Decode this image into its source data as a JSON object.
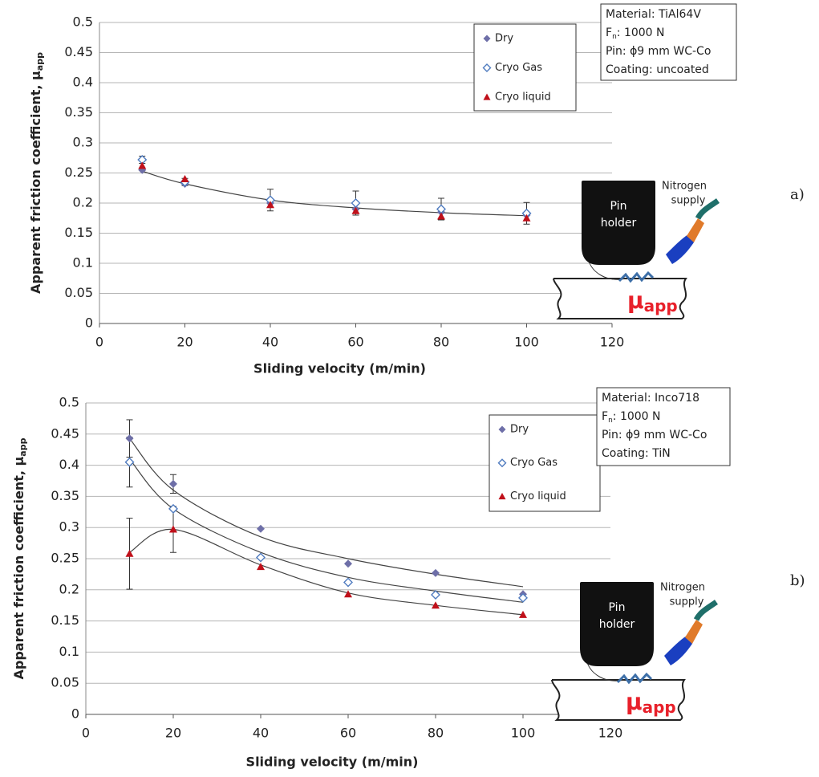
{
  "chart_data": [
    {
      "type": "scatter",
      "panel": "a)",
      "x_label": "Sliding velocity (m/min)",
      "y_label": "Apparent friction coefficient, μ",
      "y_label_sub": "app",
      "x": [
        10,
        20,
        40,
        60,
        80,
        100
      ],
      "xlim": [
        0,
        120
      ],
      "xticks": [
        0,
        20,
        40,
        60,
        80,
        100,
        120
      ],
      "ylim": [
        0,
        0.5
      ],
      "yticks": [
        0,
        0.05,
        0.1,
        0.15,
        0.2,
        0.25,
        0.3,
        0.35,
        0.4,
        0.45,
        0.5
      ],
      "grid": true,
      "legend": "upper right",
      "info": [
        {
          "text": "Material: TiAl64V"
        },
        {
          "text": "F",
          "sub": "n",
          "rest": ": 1000 N"
        },
        {
          "text": "Pin: ϕ9 mm WC-Co"
        },
        {
          "text": "Coating: uncoated"
        }
      ],
      "inset": {
        "pin": [
          "Pin",
          "holder"
        ],
        "gas": [
          "Nitrogen",
          "supply"
        ],
        "mu": "μ",
        "mu_sub": "app"
      },
      "series": [
        {
          "name": "Dry",
          "color": "#6e6fa8",
          "marker": "diamond",
          "values": [
            0.255,
            0.232,
            0.2,
            0.19,
            0.185,
            0.18
          ],
          "trend": [
            0.253,
            0.232,
            0.205,
            0.192,
            0.184,
            0.179
          ]
        },
        {
          "name": "Cryo Gas",
          "color": "#4f7bbf",
          "marker": "open-diamond",
          "values": [
            0.272,
            0.235,
            0.205,
            0.2,
            0.19,
            0.183
          ],
          "errors": [
            0.006,
            0.006,
            0.018,
            0.02,
            0.018,
            0.018
          ]
        },
        {
          "name": "Cryo liquid",
          "color": "#c0101a",
          "marker": "triangle",
          "values": [
            0.262,
            0.24,
            0.197,
            0.187,
            0.178,
            0.175
          ]
        }
      ]
    },
    {
      "type": "scatter",
      "panel": "b)",
      "x_label": "Sliding velocity (m/min)",
      "y_label": "Apparent friction coefficient, μ",
      "y_label_sub": "app",
      "x": [
        10,
        20,
        40,
        60,
        80,
        100
      ],
      "xlim": [
        0,
        120
      ],
      "xticks": [
        0,
        20,
        40,
        60,
        80,
        100,
        120
      ],
      "ylim": [
        0,
        0.5
      ],
      "yticks": [
        0,
        0.05,
        0.1,
        0.15,
        0.2,
        0.25,
        0.3,
        0.35,
        0.4,
        0.45,
        0.5
      ],
      "grid": true,
      "legend": "upper right",
      "info": [
        {
          "text": "Material: Inco718"
        },
        {
          "text": "F",
          "sub": "n",
          "rest": ": 1000 N"
        },
        {
          "text": "Pin: ϕ9 mm WC-Co"
        },
        {
          "text": "Coating: TiN"
        }
      ],
      "inset": {
        "pin": [
          "Pin",
          "holder"
        ],
        "gas": [
          "Nitrogen",
          "supply"
        ],
        "mu": "μ",
        "mu_sub": "app"
      },
      "series": [
        {
          "name": "Dry",
          "color": "#6e6fa8",
          "marker": "diamond",
          "values": [
            0.443,
            0.37,
            0.298,
            0.242,
            0.227,
            0.193
          ],
          "errors": [
            0.03,
            0.015,
            null,
            null,
            null,
            null
          ],
          "trend": [
            0.443,
            0.36,
            0.285,
            0.25,
            0.225,
            0.205
          ]
        },
        {
          "name": "Cryo Gas",
          "color": "#4f7bbf",
          "marker": "open-diamond",
          "values": [
            0.405,
            0.33,
            0.252,
            0.212,
            0.192,
            0.187
          ],
          "errors": [
            0.04,
            null,
            null,
            null,
            null,
            null
          ],
          "trend": [
            0.41,
            0.33,
            0.26,
            0.22,
            0.198,
            0.18
          ]
        },
        {
          "name": "Cryo liquid",
          "color": "#c0101a",
          "marker": "triangle",
          "values": [
            0.258,
            0.297,
            0.237,
            0.193,
            0.175,
            0.16
          ],
          "errors": [
            0.057,
            0.037,
            null,
            null,
            null,
            null
          ],
          "trend": [
            0.26,
            0.297,
            0.24,
            0.195,
            0.175,
            0.16
          ]
        }
      ]
    }
  ]
}
